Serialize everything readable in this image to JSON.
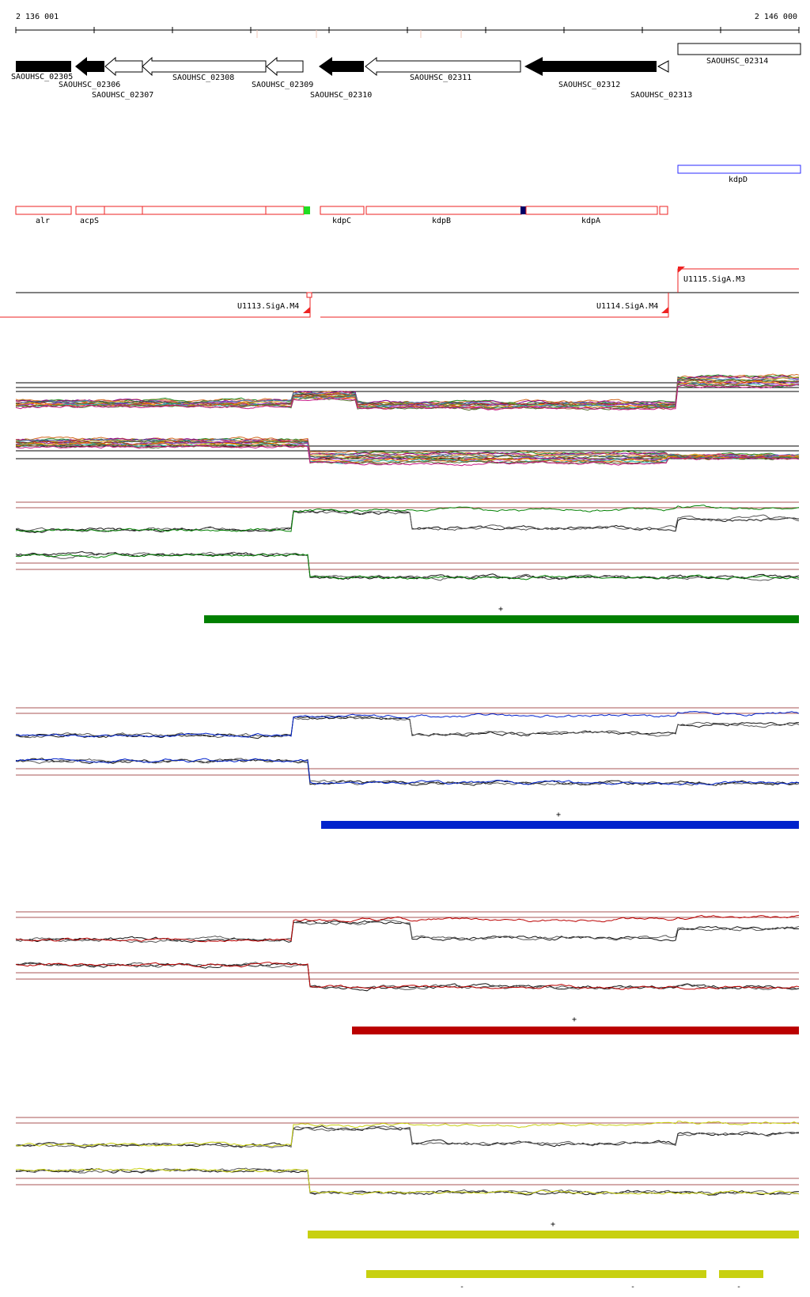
{
  "ruler": {
    "start_label": "2 136 001",
    "end_label": "2 146 000"
  },
  "genes": [
    {
      "id": "SAOUHSC_02305",
      "strand": "+",
      "filled": true
    },
    {
      "id": "SAOUHSC_02306",
      "strand": "-",
      "filled": true
    },
    {
      "id": "SAOUHSC_02307",
      "strand": "-",
      "filled": false
    },
    {
      "id": "SAOUHSC_02308",
      "strand": "-",
      "filled": false
    },
    {
      "id": "SAOUHSC_02309",
      "strand": "-",
      "filled": false
    },
    {
      "id": "SAOUHSC_02310",
      "strand": "-",
      "filled": true
    },
    {
      "id": "SAOUHSC_02311",
      "strand": "-",
      "filled": false
    },
    {
      "id": "SAOUHSC_02312",
      "strand": "-",
      "filled": true
    },
    {
      "id": "SAOUHSC_02313",
      "strand": "-",
      "filled": false
    },
    {
      "id": "SAOUHSC_02314",
      "strand": "+",
      "filled": false
    }
  ],
  "gene_names": {
    "forward": [
      "kdpD"
    ],
    "reverse": [
      "alr",
      "acpS",
      "kdpC",
      "kdpB",
      "kdpA"
    ]
  },
  "transcription_units": [
    "U1113.SigA.M4",
    "U1114.SigA.M4",
    "U1115.SigA.M3"
  ],
  "conditions": [
    {
      "name": "green",
      "color": "#008000",
      "strand_mark": "+"
    },
    {
      "name": "blue",
      "color": "#0022cc",
      "strand_mark": "+"
    },
    {
      "name": "red",
      "color": "#bb0000",
      "strand_mark": "+"
    },
    {
      "name": "yellow",
      "color": "#c8d010",
      "strand_mark": "+",
      "extra_mark": "-"
    }
  ],
  "colors": {
    "forward_track": "#2a2aff",
    "reverse_track": "#ee2222",
    "threshold_line": "#aa5555",
    "marker_green": "#22dd22",
    "marker_navy": "#000066"
  }
}
